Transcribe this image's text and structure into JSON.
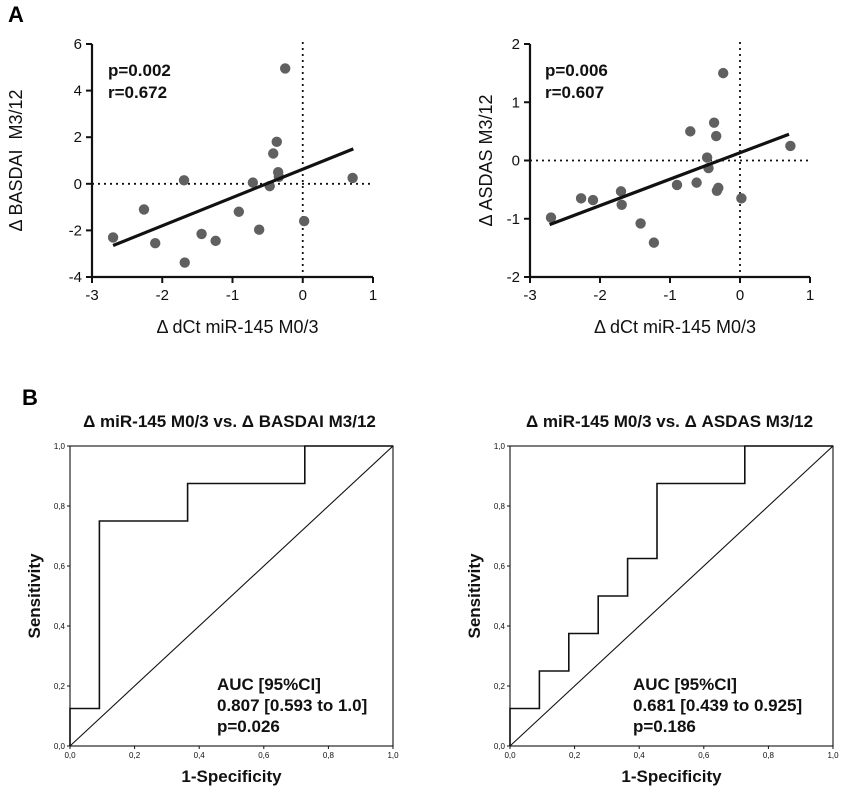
{
  "panel_labels": {
    "a": "A",
    "b": "B"
  },
  "colors": {
    "point": "#606060",
    "line": "#111111",
    "axis": "#111111"
  },
  "chart_data": [
    {
      "type": "scatter",
      "panel": "A",
      "xlabel": "Δ dCt miR-145 M0/3",
      "ylabel": "Δ BASDAI  M3/12",
      "xlim": [
        -3,
        1
      ],
      "ylim": [
        -4,
        6
      ],
      "xticks": [
        "-3",
        "-2",
        "-1",
        "0",
        "1"
      ],
      "xtick_values": [
        -3,
        -2,
        -1,
        0,
        1
      ],
      "yticks": [
        "-4",
        "-2",
        "0",
        "2",
        "4",
        "6"
      ],
      "ytick_values": [
        -4,
        -2,
        0,
        2,
        4,
        6
      ],
      "annotations": [
        "p=0.002",
        "r=0.672"
      ],
      "reference_lines": {
        "x": 0,
        "y": 0,
        "style": "dotted"
      },
      "regression_line": {
        "x": [
          -2.7,
          0.72
        ],
        "y": [
          -2.65,
          1.5
        ]
      },
      "points": [
        {
          "x": -2.7,
          "y": -2.3
        },
        {
          "x": -2.26,
          "y": -1.1
        },
        {
          "x": -2.1,
          "y": -2.55
        },
        {
          "x": -1.69,
          "y": 0.15
        },
        {
          "x": -1.68,
          "y": -3.38
        },
        {
          "x": -1.44,
          "y": -2.15
        },
        {
          "x": -1.24,
          "y": -2.45
        },
        {
          "x": -0.91,
          "y": -1.2
        },
        {
          "x": -0.71,
          "y": 0.05
        },
        {
          "x": -0.62,
          "y": -1.97
        },
        {
          "x": -0.47,
          "y": -0.1
        },
        {
          "x": -0.42,
          "y": 1.3
        },
        {
          "x": -0.37,
          "y": 1.8
        },
        {
          "x": -0.35,
          "y": 0.5
        },
        {
          "x": -0.34,
          "y": 0.3
        },
        {
          "x": -0.25,
          "y": 4.95
        },
        {
          "x": 0.02,
          "y": -1.6
        },
        {
          "x": 0.71,
          "y": 0.25
        }
      ]
    },
    {
      "type": "scatter",
      "panel": "A",
      "xlabel": "Δ dCt miR-145 M0/3",
      "ylabel": "Δ ASDAS M3/12",
      "xlim": [
        -3,
        1
      ],
      "ylim": [
        -2,
        2
      ],
      "xticks": [
        "-3",
        "-2",
        "-1",
        "0",
        "1"
      ],
      "xtick_values": [
        -3,
        -2,
        -1,
        0,
        1
      ],
      "yticks": [
        "-2",
        "-1",
        "0",
        "1",
        "2"
      ],
      "ytick_values": [
        -2,
        -1,
        0,
        1,
        2
      ],
      "annotations": [
        "p=0.006",
        "r=0.607"
      ],
      "reference_lines": {
        "x": 0,
        "y": 0,
        "style": "dotted"
      },
      "regression_line": {
        "x": [
          -2.72,
          0.7
        ],
        "y": [
          -1.1,
          0.45
        ]
      },
      "points": [
        {
          "x": -2.7,
          "y": -0.98
        },
        {
          "x": -2.27,
          "y": -0.65
        },
        {
          "x": -2.1,
          "y": -0.68
        },
        {
          "x": -1.7,
          "y": -0.53
        },
        {
          "x": -1.69,
          "y": -0.76
        },
        {
          "x": -1.42,
          "y": -1.08
        },
        {
          "x": -1.23,
          "y": -1.41
        },
        {
          "x": -0.9,
          "y": -0.42
        },
        {
          "x": -0.71,
          "y": 0.5
        },
        {
          "x": -0.62,
          "y": -0.38
        },
        {
          "x": -0.47,
          "y": 0.05
        },
        {
          "x": -0.45,
          "y": -0.13
        },
        {
          "x": -0.37,
          "y": 0.65
        },
        {
          "x": -0.34,
          "y": 0.42
        },
        {
          "x": -0.33,
          "y": -0.52
        },
        {
          "x": -0.31,
          "y": -0.47
        },
        {
          "x": -0.24,
          "y": 1.5
        },
        {
          "x": 0.02,
          "y": -0.65
        },
        {
          "x": 0.72,
          "y": 0.25
        }
      ]
    },
    {
      "type": "line",
      "panel": "B",
      "title": "Δ miR-145 M0/3 vs. Δ BASDAI M3/12",
      "xlabel": "1-Specificity",
      "ylabel": "Sensitivity",
      "xlim": [
        0,
        1
      ],
      "ylim": [
        0,
        1
      ],
      "xticks": [
        "0,0",
        "0,2",
        "0,4",
        "0,6",
        "0,8",
        "1,0"
      ],
      "yticks": [
        "0,0",
        "0,2",
        "0,4",
        "0,6",
        "0,8",
        "1,0"
      ],
      "tick_values": [
        0,
        0.2,
        0.4,
        0.6,
        0.8,
        1.0
      ],
      "annotations": [
        "AUC [95%CI]",
        "0.807 [0.593 to 1.0]",
        "p=0.026"
      ],
      "diagonal": true,
      "roc_x": [
        0,
        0,
        0.091,
        0.091,
        0.364,
        0.364,
        0.727,
        0.727,
        1.0
      ],
      "roc_y": [
        0,
        0.125,
        0.125,
        0.75,
        0.75,
        0.875,
        0.875,
        1.0,
        1.0
      ]
    },
    {
      "type": "line",
      "panel": "B",
      "title": "Δ miR-145 M0/3 vs. Δ ASDAS M3/12",
      "xlabel": "1-Specificity",
      "ylabel": "Sensitivity",
      "xlim": [
        0,
        1
      ],
      "ylim": [
        0,
        1
      ],
      "xticks": [
        "0,0",
        "0,2",
        "0,4",
        "0,6",
        "0,8",
        "1,0"
      ],
      "yticks": [
        "0,0",
        "0,2",
        "0,4",
        "0,6",
        "0,8",
        "1,0"
      ],
      "tick_values": [
        0,
        0.2,
        0.4,
        0.6,
        0.8,
        1.0
      ],
      "annotations": [
        "AUC [95%CI]",
        "0.681 [0.439 to 0.925]",
        "p=0.186"
      ],
      "diagonal": true,
      "roc_x": [
        0,
        0,
        0.091,
        0.091,
        0.182,
        0.182,
        0.273,
        0.273,
        0.364,
        0.364,
        0.455,
        0.455,
        0.727,
        0.727,
        1.0
      ],
      "roc_y": [
        0,
        0.125,
        0.125,
        0.25,
        0.25,
        0.375,
        0.375,
        0.5,
        0.5,
        0.625,
        0.625,
        0.875,
        0.875,
        1.0,
        1.0
      ]
    }
  ]
}
